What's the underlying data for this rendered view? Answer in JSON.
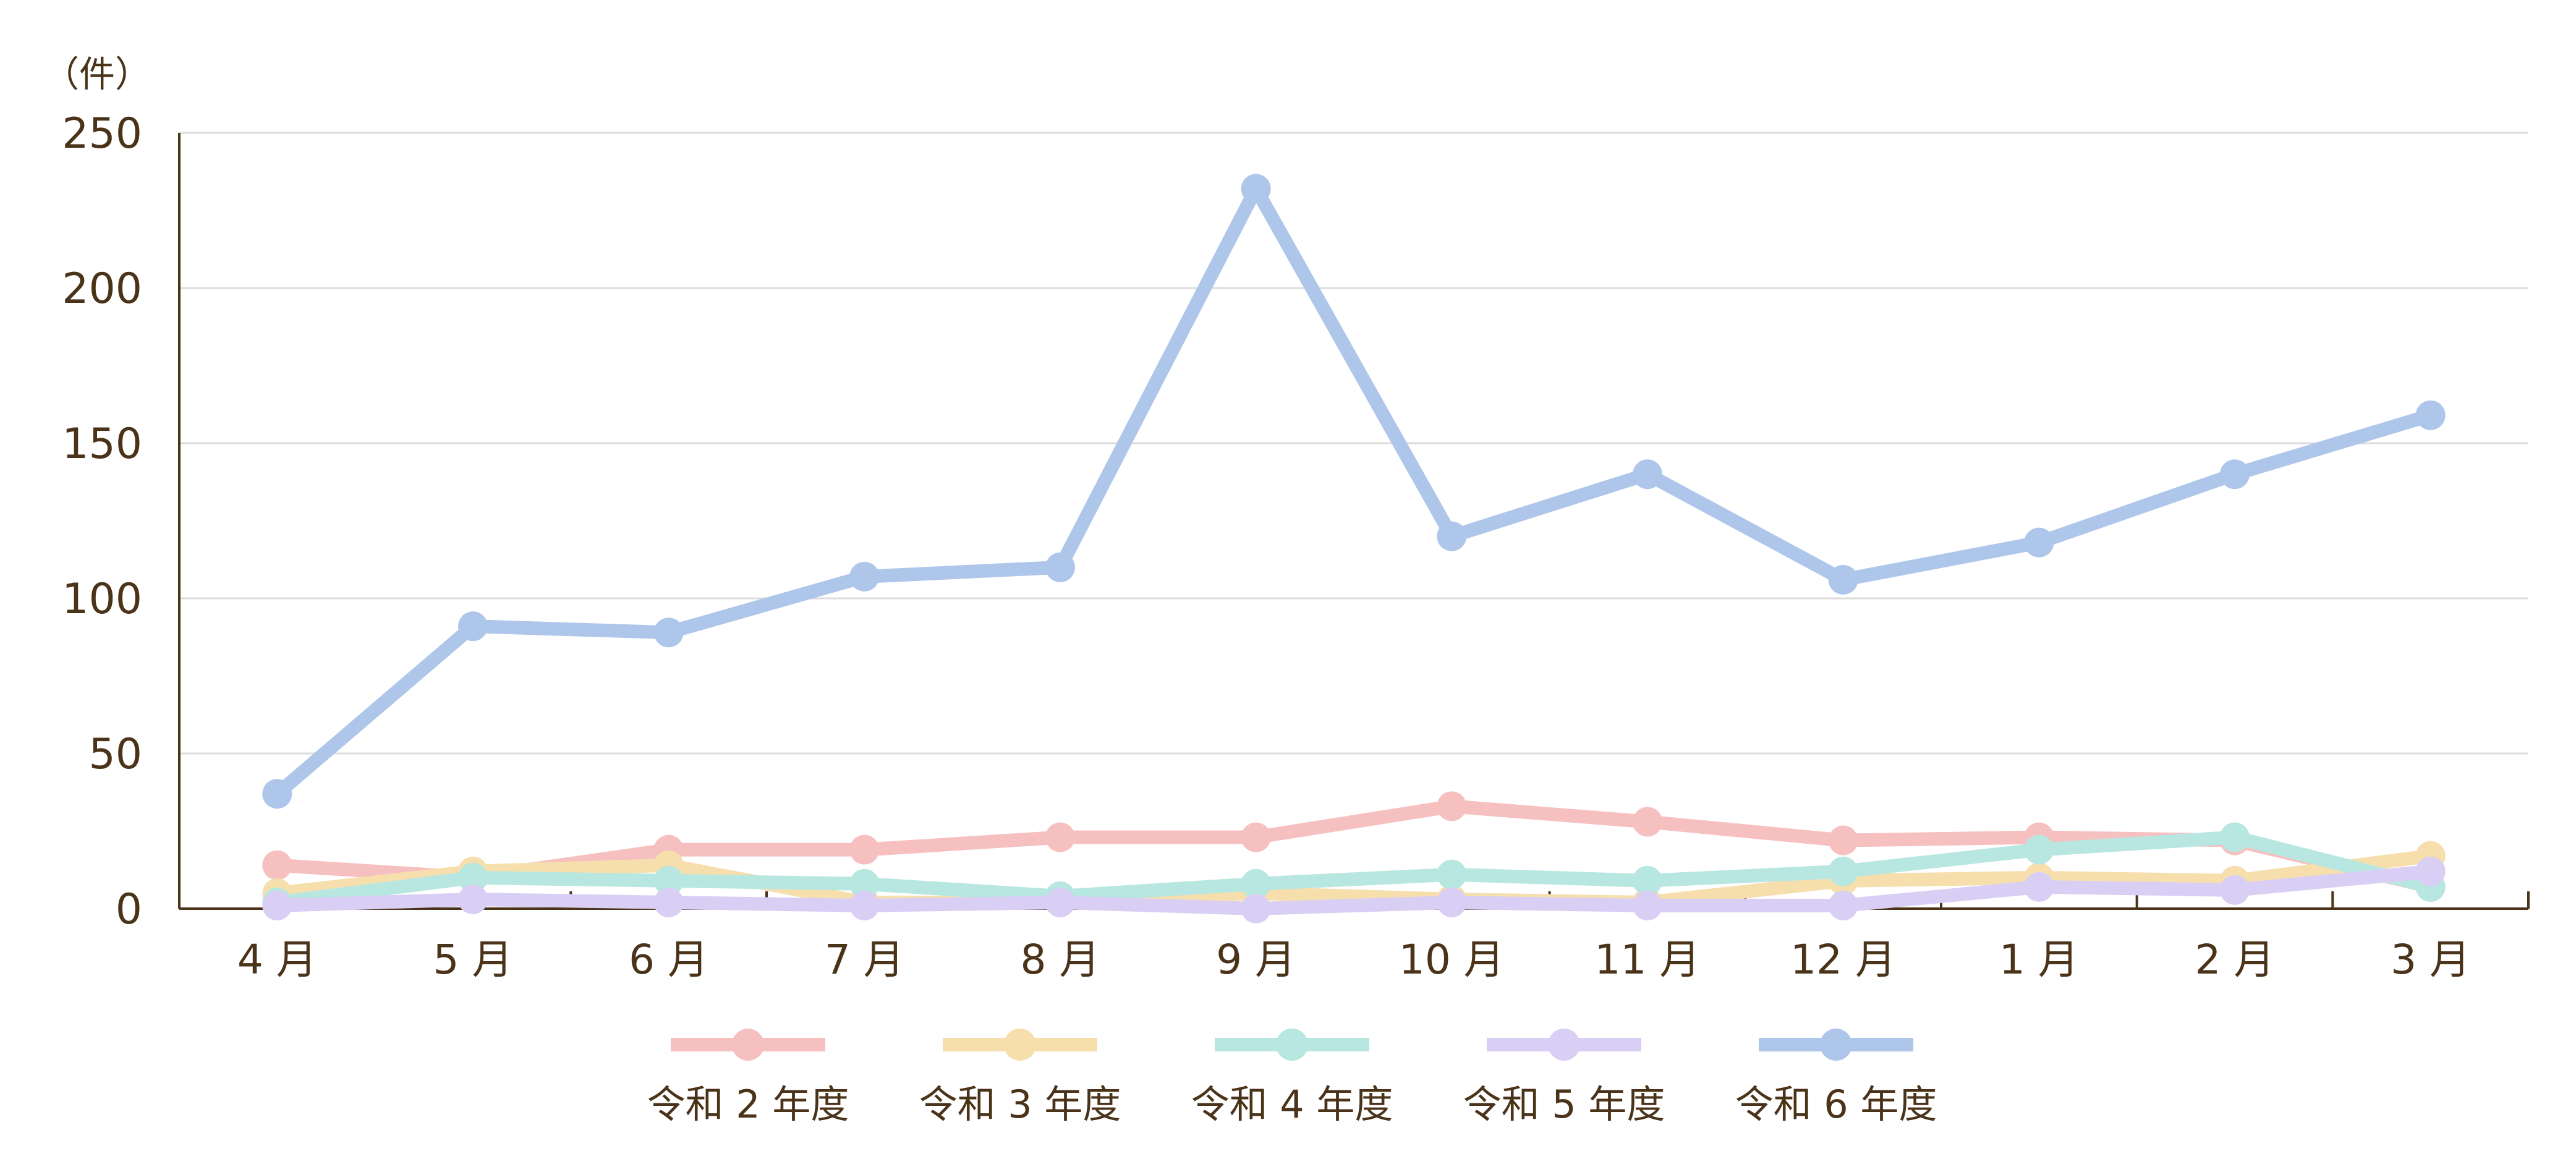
{
  "chart_data": {
    "type": "line",
    "unit_label": "（件）",
    "title": "",
    "xlabel": "",
    "ylabel": "",
    "categories": [
      "4 月",
      "5 月",
      "6 月",
      "7 月",
      "8 月",
      "9 月",
      "10 月",
      "11 月",
      "12 月",
      "1 月",
      "2 月",
      "3 月"
    ],
    "ylim": [
      0,
      250
    ],
    "yticks": [
      0,
      50,
      100,
      150,
      200,
      250
    ],
    "grid": "horizontal",
    "legend_position": "bottom",
    "series": [
      {
        "name": "令和 2 年度",
        "color": "#f7c0c0",
        "values": [
          14,
          10,
          19,
          19,
          23,
          23,
          33,
          28,
          22,
          23,
          22,
          7
        ]
      },
      {
        "name": "令和 3 年度",
        "color": "#f6dfad",
        "values": [
          5,
          12,
          14,
          2,
          2,
          5,
          3,
          2,
          9,
          10,
          9,
          17
        ]
      },
      {
        "name": "令和 4 年度",
        "color": "#b8e6e0",
        "values": [
          2,
          10,
          9,
          8,
          4,
          8,
          11,
          9,
          12,
          19,
          23,
          7
        ]
      },
      {
        "name": "令和 5 年度",
        "color": "#d9cff5",
        "values": [
          1,
          3,
          2,
          1,
          2,
          0,
          2,
          1,
          1,
          7,
          6,
          12
        ]
      },
      {
        "name": "令和 6 年度",
        "color": "#aec6ea",
        "values": [
          37,
          91,
          89,
          107,
          110,
          232,
          120,
          140,
          106,
          118,
          140,
          159
        ]
      }
    ]
  }
}
